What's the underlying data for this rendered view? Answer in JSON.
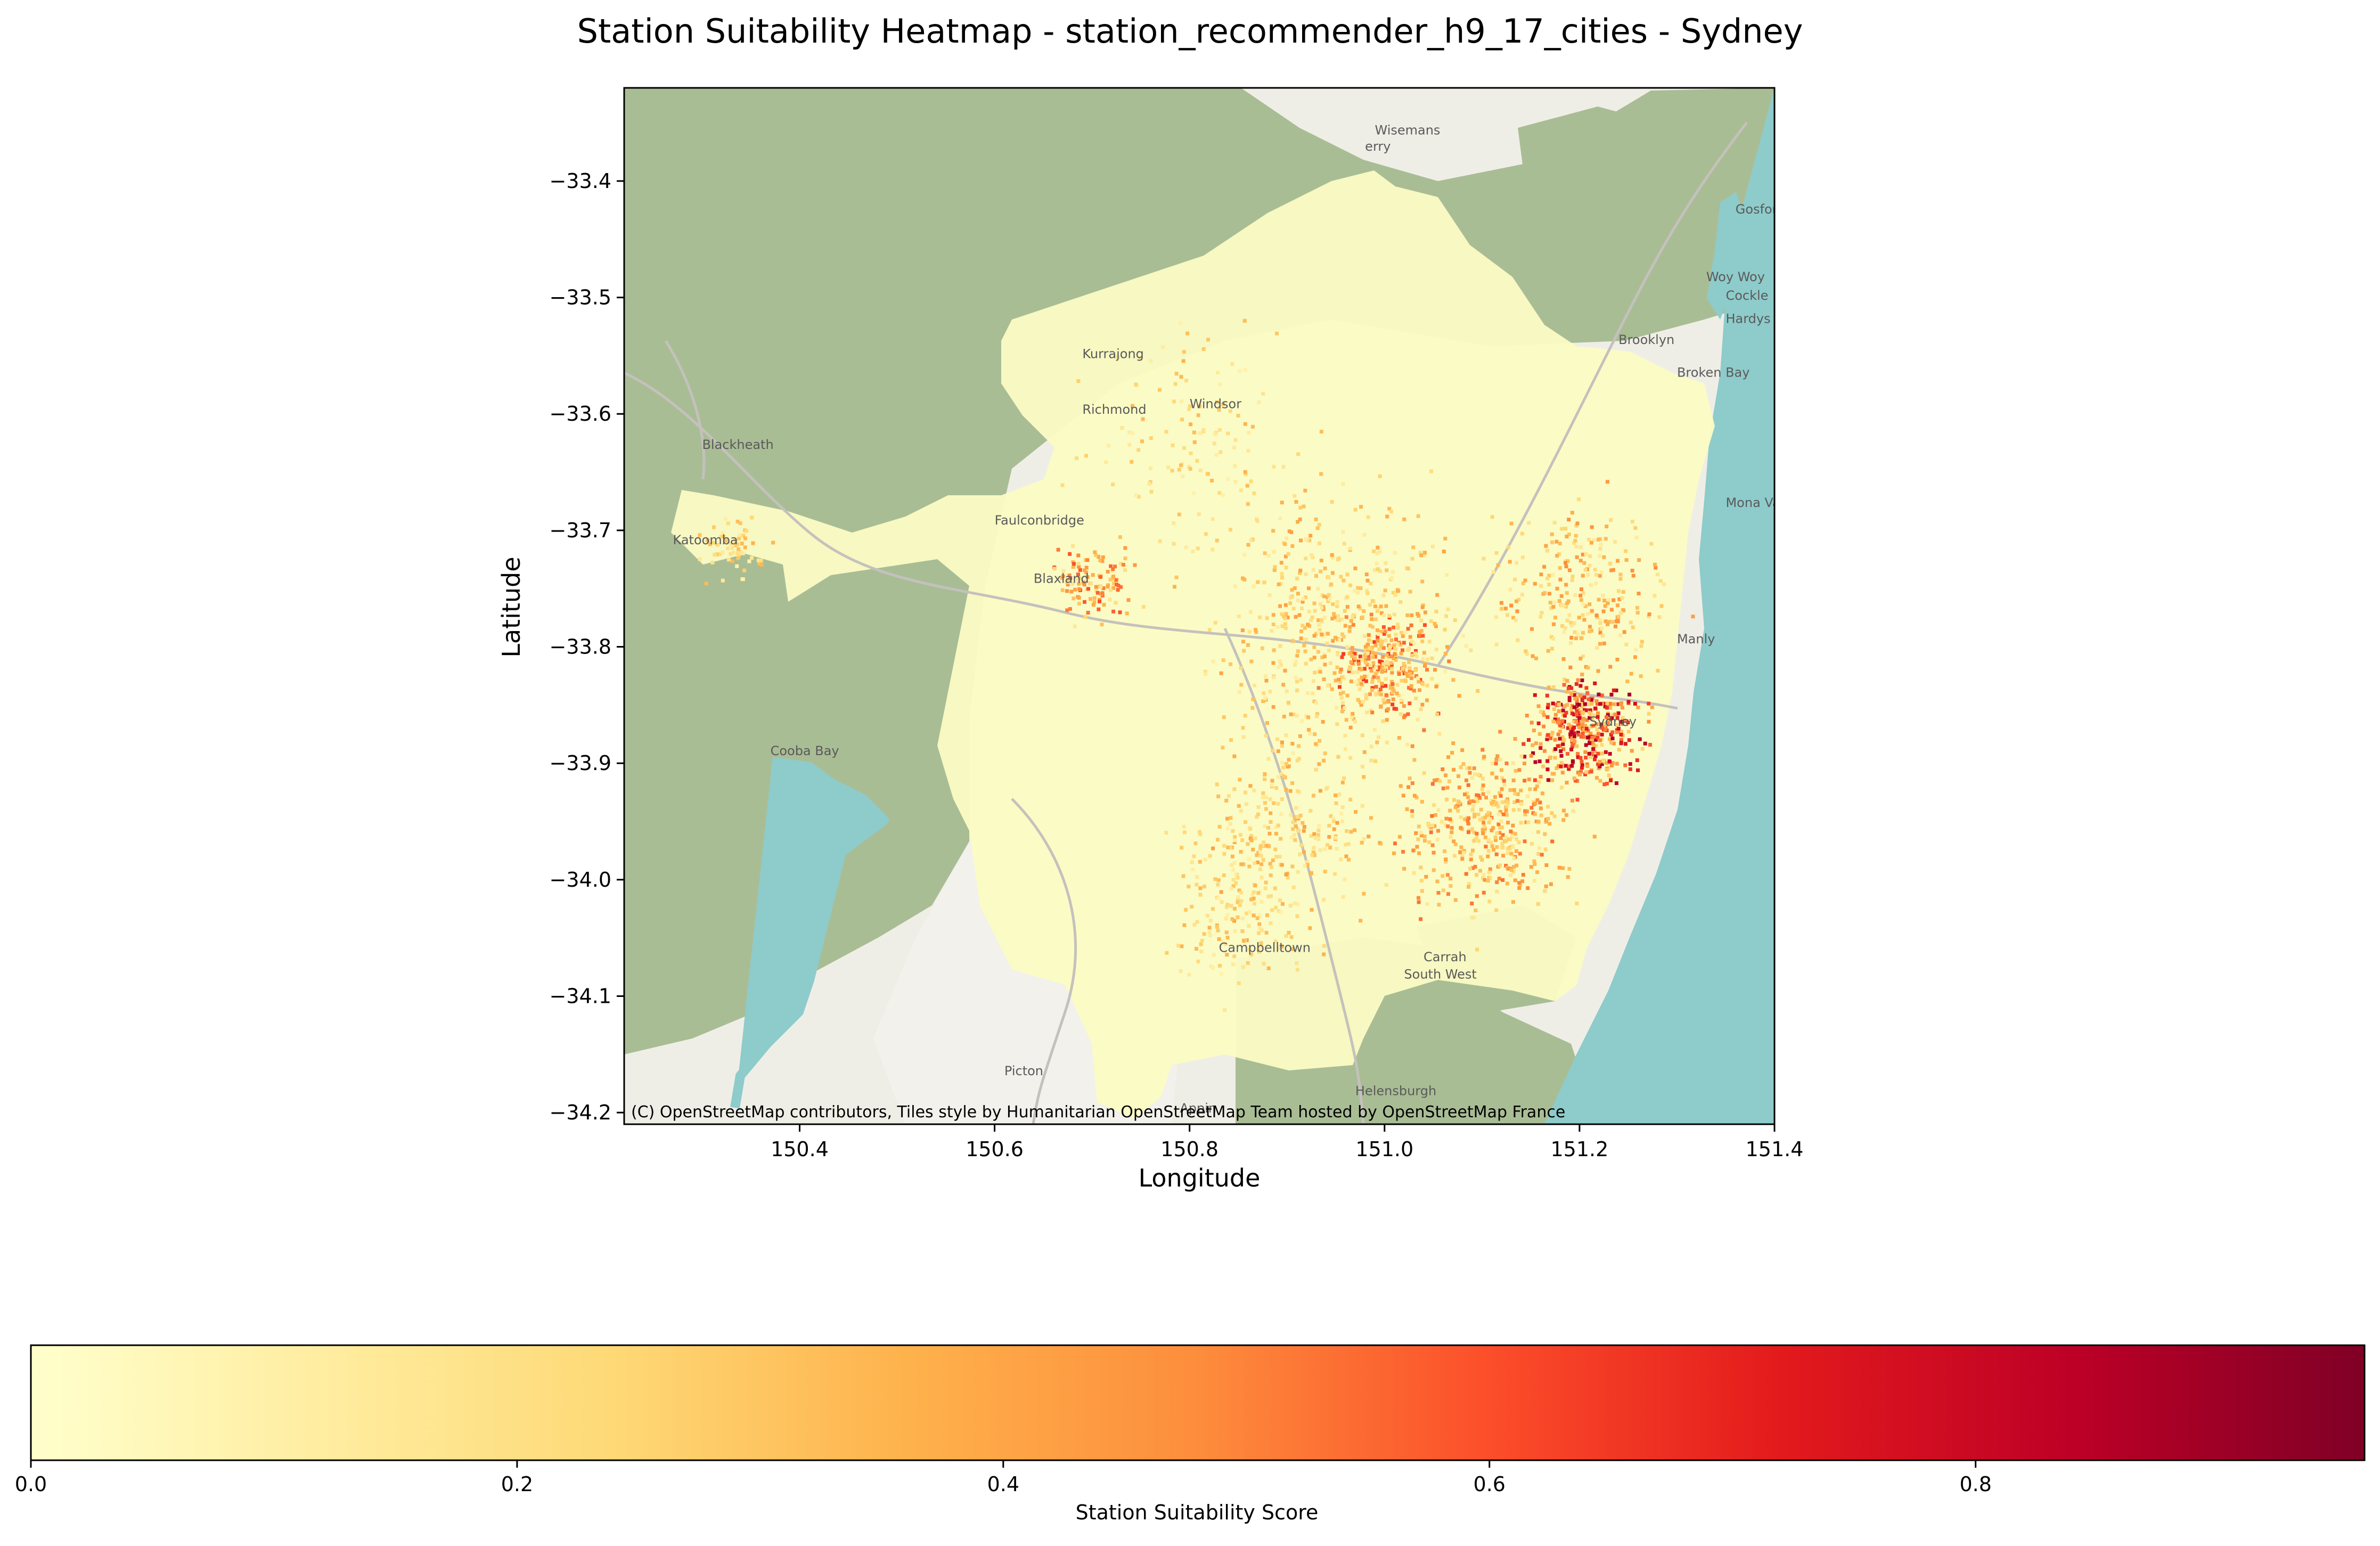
{
  "title": "Station Suitability Heatmap - station_recommender_h9_17_cities - Sydney",
  "map": {
    "xlabel": "Longitude",
    "ylabel": "Latitude",
    "xlim": [
      150.22,
      151.4
    ],
    "ylim": [
      -34.21,
      -33.32
    ],
    "xticks": [
      150.4,
      150.6,
      150.8,
      151.0,
      151.2,
      151.4
    ],
    "xtick_labels": [
      "150.4",
      "150.6",
      "150.8",
      "151.0",
      "151.2",
      "151.4"
    ],
    "yticks": [
      -33.4,
      -33.5,
      -33.6,
      -33.7,
      -33.8,
      -33.9,
      -34.0,
      -34.1,
      -34.2
    ],
    "ytick_labels": [
      "−33.4",
      "−33.5",
      "−33.6",
      "−33.7",
      "−33.8",
      "−33.9",
      "−34.0",
      "−34.1",
      "−34.2"
    ],
    "attribution": "(C) OpenStreetMap contributors, Tiles style by Humanitarian OpenStreetMap Team hosted by OpenStreetMap France",
    "place_labels": [
      {
        "name": "Wisemans",
        "lon": 150.99,
        "lat": -33.36
      },
      {
        "name": "erry",
        "lon": 150.98,
        "lat": -33.374
      },
      {
        "name": "Gosford",
        "lon": 151.36,
        "lat": -33.428
      },
      {
        "name": "Woy Woy",
        "lon": 151.33,
        "lat": -33.486
      },
      {
        "name": "Cockle Bay",
        "lon": 151.35,
        "lat": -33.502
      },
      {
        "name": "Hardys Bay",
        "lon": 151.35,
        "lat": -33.522
      },
      {
        "name": "Kurrajong",
        "lon": 150.69,
        "lat": -33.552
      },
      {
        "name": "Richmond",
        "lon": 150.69,
        "lat": -33.6
      },
      {
        "name": "Windsor",
        "lon": 150.8,
        "lat": -33.595
      },
      {
        "name": "Brooklyn",
        "lon": 151.24,
        "lat": -33.54
      },
      {
        "name": "Broken Bay",
        "lon": 151.3,
        "lat": -33.568
      },
      {
        "name": "Blackheath",
        "lon": 150.3,
        "lat": -33.63
      },
      {
        "name": "Faulconbridge",
        "lon": 150.6,
        "lat": -33.695
      },
      {
        "name": "Katoomba",
        "lon": 150.27,
        "lat": -33.712
      },
      {
        "name": "Blaxland",
        "lon": 150.64,
        "lat": -33.745
      },
      {
        "name": "Mona Vale",
        "lon": 151.35,
        "lat": -33.68
      },
      {
        "name": "Manly",
        "lon": 151.3,
        "lat": -33.797
      },
      {
        "name": "Sydney",
        "lon": 151.21,
        "lat": -33.868
      },
      {
        "name": "Cooba Bay",
        "lon": 150.37,
        "lat": -33.893
      },
      {
        "name": "Campbelltown",
        "lon": 150.83,
        "lat": -34.062
      },
      {
        "name": "Carrah",
        "lon": 151.04,
        "lat": -34.07
      },
      {
        "name": "South West",
        "lon": 151.02,
        "lat": -34.085
      },
      {
        "name": "Picton",
        "lon": 150.61,
        "lat": -34.168
      },
      {
        "name": "Appin",
        "lon": 150.79,
        "lat": -34.2
      },
      {
        "name": "Helensburgh",
        "lon": 150.97,
        "lat": -34.185
      }
    ]
  },
  "colorbar": {
    "label": "Station Suitability Score",
    "range": [
      0,
      0.96
    ],
    "ticks": [
      0.0,
      0.2,
      0.4,
      0.6,
      0.8
    ],
    "tick_labels": [
      "0.0",
      "0.2",
      "0.4",
      "0.6",
      "0.8"
    ],
    "colormap": "YlOrRd",
    "stops": [
      "#ffffcc",
      "#ffeda0",
      "#fed976",
      "#feb24c",
      "#fd8d3c",
      "#fc4e2a",
      "#e31a1c",
      "#bd0026",
      "#800026"
    ]
  },
  "colors": {
    "forest": "#a9bd95",
    "sea": "#8ecbcb",
    "urban_base": "#fbfbc4",
    "land_light": "#efeee6"
  }
}
